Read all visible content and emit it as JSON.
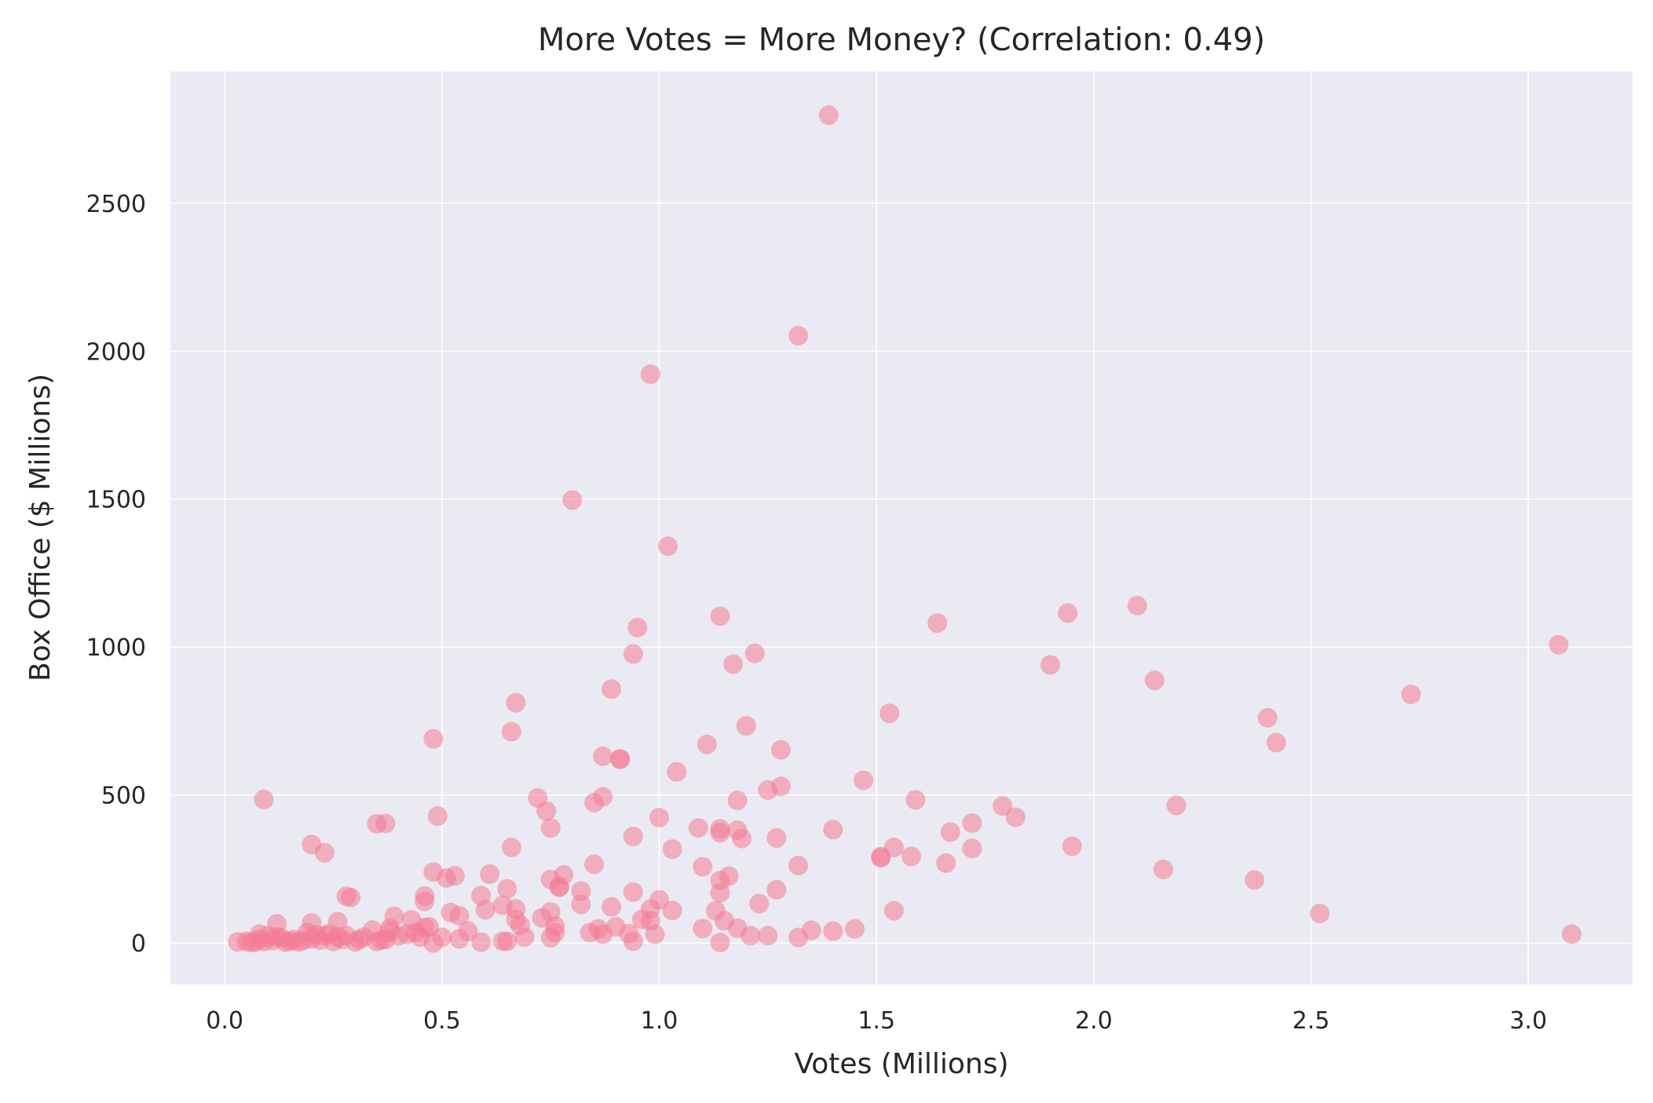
{
  "chart_data": {
    "type": "scatter",
    "title": "More Votes = More Money? (Correlation: 0.49)",
    "xlabel": "Votes (Millions)",
    "ylabel": "Box Office ($ Millions)",
    "xlim": [
      -0.125,
      3.24
    ],
    "ylim": [
      -140,
      2945
    ],
    "xticks": [
      0.0,
      0.5,
      1.0,
      1.5,
      2.0,
      2.5,
      3.0
    ],
    "xtick_labels": [
      "0.0",
      "0.5",
      "1.0",
      "1.5",
      "2.0",
      "2.5",
      "3.0"
    ],
    "yticks": [
      0,
      500,
      1000,
      1500,
      2000,
      2500
    ],
    "ytick_labels": [
      "0",
      "500",
      "1000",
      "1500",
      "2000",
      "2500"
    ],
    "grid": true,
    "colors": {
      "background": "#eaeaf2",
      "grid": "#ffffff",
      "marker": "#f47a94"
    },
    "marker_opacity": 0.55,
    "points": [
      [
        1.39,
        2797
      ],
      [
        1.32,
        2052
      ],
      [
        0.98,
        1922
      ],
      [
        0.8,
        1497
      ],
      [
        1.02,
        1341
      ],
      [
        1.14,
        1104
      ],
      [
        0.95,
        1066
      ],
      [
        0.94,
        977
      ],
      [
        1.17,
        942
      ],
      [
        1.22,
        979
      ],
      [
        0.89,
        858
      ],
      [
        0.67,
        812
      ],
      [
        0.66,
        714
      ],
      [
        0.48,
        690
      ],
      [
        0.87,
        631
      ],
      [
        0.91,
        622
      ],
      [
        0.91,
        621
      ],
      [
        1.11,
        671
      ],
      [
        1.2,
        734
      ],
      [
        1.28,
        653
      ],
      [
        1.04,
        578
      ],
      [
        0.87,
        494
      ],
      [
        0.85,
        474
      ],
      [
        0.72,
        490
      ],
      [
        0.74,
        446
      ],
      [
        0.75,
        389
      ],
      [
        0.49,
        429
      ],
      [
        0.09,
        485
      ],
      [
        0.35,
        403
      ],
      [
        0.37,
        404
      ],
      [
        0.2,
        333
      ],
      [
        0.23,
        305
      ],
      [
        0.66,
        323
      ],
      [
        0.94,
        360
      ],
      [
        1.0,
        424
      ],
      [
        1.03,
        317
      ],
      [
        1.09,
        389
      ],
      [
        1.14,
        386
      ],
      [
        1.14,
        373
      ],
      [
        1.18,
        381
      ],
      [
        1.18,
        482
      ],
      [
        1.25,
        517
      ],
      [
        1.28,
        529
      ],
      [
        1.27,
        355
      ],
      [
        1.19,
        353
      ],
      [
        1.4,
        383
      ],
      [
        1.47,
        550
      ],
      [
        1.53,
        776
      ],
      [
        1.64,
        1081
      ],
      [
        1.9,
        940
      ],
      [
        1.94,
        1115
      ],
      [
        2.1,
        1140
      ],
      [
        2.14,
        887
      ],
      [
        2.4,
        761
      ],
      [
        2.42,
        677
      ],
      [
        2.73,
        840
      ],
      [
        3.07,
        1008
      ],
      [
        3.1,
        30
      ],
      [
        2.52,
        100
      ],
      [
        2.37,
        213
      ],
      [
        2.16,
        249
      ],
      [
        2.19,
        465
      ],
      [
        1.95,
        327
      ],
      [
        1.82,
        425
      ],
      [
        1.79,
        463
      ],
      [
        1.72,
        405
      ],
      [
        1.72,
        320
      ],
      [
        1.67,
        375
      ],
      [
        1.66,
        270
      ],
      [
        1.59,
        484
      ],
      [
        1.58,
        293
      ],
      [
        1.54,
        323
      ],
      [
        1.51,
        288
      ],
      [
        1.51,
        292
      ],
      [
        1.54,
        109
      ],
      [
        1.45,
        48
      ],
      [
        1.4,
        40
      ],
      [
        1.35,
        43
      ],
      [
        1.32,
        19
      ],
      [
        1.32,
        262
      ],
      [
        1.27,
        180
      ],
      [
        1.23,
        133
      ],
      [
        1.25,
        25
      ],
      [
        1.21,
        25
      ],
      [
        1.16,
        226
      ],
      [
        1.14,
        211
      ],
      [
        1.14,
        170
      ],
      [
        1.13,
        109
      ],
      [
        1.15,
        75
      ],
      [
        1.18,
        50
      ],
      [
        1.14,
        2
      ],
      [
        1.1,
        258
      ],
      [
        1.1,
        49
      ],
      [
        1.03,
        110
      ],
      [
        1.0,
        146
      ],
      [
        0.99,
        30
      ],
      [
        0.98,
        115
      ],
      [
        0.98,
        75
      ],
      [
        0.96,
        80
      ],
      [
        0.94,
        172
      ],
      [
        0.94,
        6
      ],
      [
        0.93,
        32
      ],
      [
        0.9,
        55
      ],
      [
        0.89,
        122
      ],
      [
        0.87,
        30
      ],
      [
        0.86,
        48
      ],
      [
        0.85,
        266
      ],
      [
        0.84,
        35
      ],
      [
        0.82,
        130
      ],
      [
        0.82,
        175
      ],
      [
        0.78,
        230
      ],
      [
        0.77,
        191
      ],
      [
        0.77,
        188
      ],
      [
        0.76,
        58
      ],
      [
        0.76,
        35
      ],
      [
        0.75,
        18
      ],
      [
        0.75,
        215
      ],
      [
        0.75,
        105
      ],
      [
        0.73,
        85
      ],
      [
        0.69,
        20
      ],
      [
        0.68,
        60
      ],
      [
        0.67,
        80
      ],
      [
        0.67,
        115
      ],
      [
        0.65,
        183
      ],
      [
        0.64,
        128
      ],
      [
        0.61,
        233
      ],
      [
        0.6,
        112
      ],
      [
        0.59,
        160
      ],
      [
        0.59,
        3
      ],
      [
        0.56,
        40
      ],
      [
        0.54,
        92
      ],
      [
        0.54,
        14
      ],
      [
        0.53,
        227
      ],
      [
        0.52,
        103
      ],
      [
        0.51,
        220
      ],
      [
        0.5,
        20
      ],
      [
        0.48,
        240
      ],
      [
        0.48,
        0
      ],
      [
        0.47,
        55
      ],
      [
        0.46,
        141
      ],
      [
        0.46,
        159
      ],
      [
        0.46,
        52
      ],
      [
        0.45,
        20
      ],
      [
        0.44,
        36
      ],
      [
        0.43,
        78
      ],
      [
        0.42,
        30
      ],
      [
        0.4,
        25
      ],
      [
        0.39,
        90
      ],
      [
        0.38,
        50
      ],
      [
        0.38,
        38
      ],
      [
        0.37,
        12
      ],
      [
        0.36,
        10
      ],
      [
        0.35,
        5
      ],
      [
        0.34,
        44
      ],
      [
        0.32,
        20
      ],
      [
        0.31,
        12
      ],
      [
        0.29,
        154
      ],
      [
        0.28,
        158
      ],
      [
        0.28,
        25
      ],
      [
        0.27,
        12
      ],
      [
        0.26,
        72
      ],
      [
        0.26,
        20
      ],
      [
        0.25,
        5
      ],
      [
        0.24,
        32
      ],
      [
        0.23,
        25
      ],
      [
        0.22,
        10
      ],
      [
        0.21,
        28
      ],
      [
        0.2,
        68
      ],
      [
        0.2,
        15
      ],
      [
        0.19,
        35
      ],
      [
        0.18,
        8
      ],
      [
        0.17,
        4
      ],
      [
        0.16,
        12
      ],
      [
        0.15,
        6
      ],
      [
        0.14,
        3
      ],
      [
        0.13,
        18
      ],
      [
        0.12,
        65
      ],
      [
        0.12,
        20
      ],
      [
        0.11,
        8
      ],
      [
        0.1,
        25
      ],
      [
        0.09,
        5
      ],
      [
        0.08,
        30
      ],
      [
        0.08,
        12
      ],
      [
        0.07,
        3
      ],
      [
        0.06,
        2
      ],
      [
        0.05,
        6
      ],
      [
        0.03,
        4
      ],
      [
        0.64,
        6
      ],
      [
        0.65,
        6
      ],
      [
        0.3,
        4
      ]
    ]
  }
}
